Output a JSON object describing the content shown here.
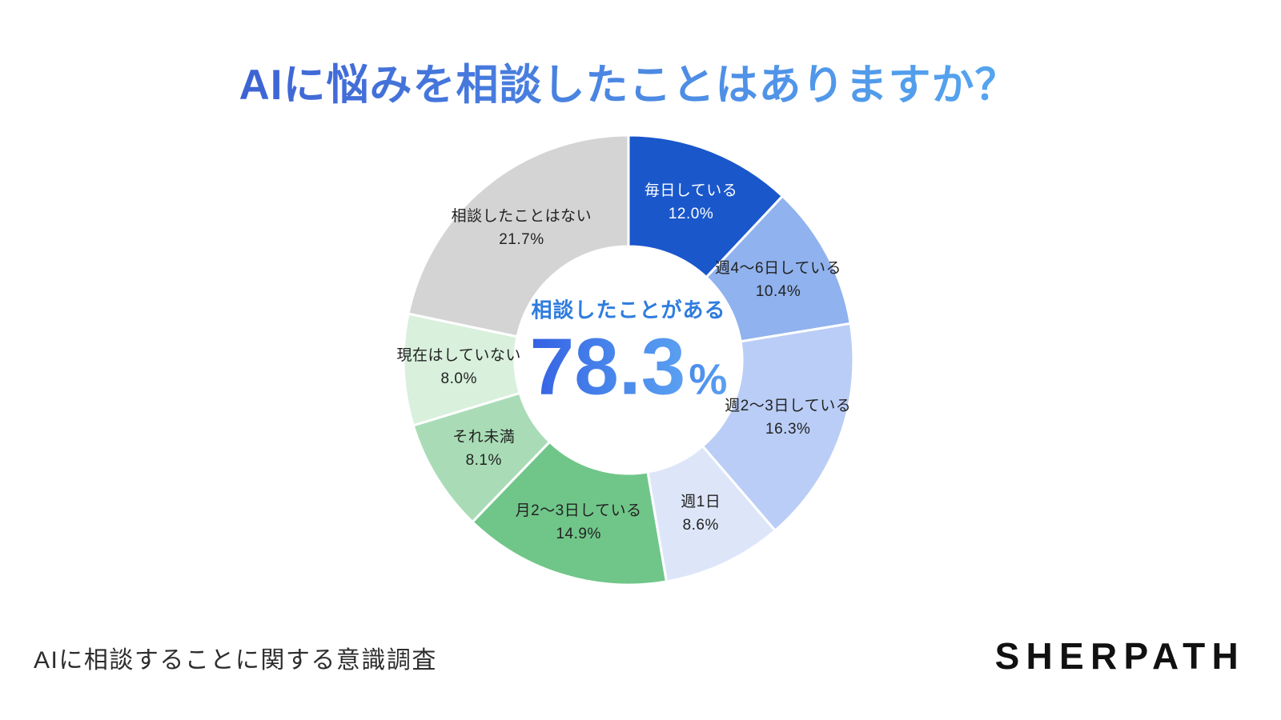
{
  "title": {
    "text": "AIに悩みを相談したことはありますか？",
    "gradient": [
      "#3E63D4",
      "#55A6EF"
    ]
  },
  "chart_data": {
    "type": "pie",
    "variant": "donut",
    "title": "AIに悩みを相談したことはありますか？",
    "start_angle_deg": 0,
    "direction": "clockwise",
    "segments": [
      {
        "label": "毎日している",
        "value": 12.0,
        "percent": "12.0%",
        "color": "#1A57CB",
        "text_color": "#FFFFFF"
      },
      {
        "label": "週4〜6日している",
        "value": 10.4,
        "percent": "10.4%",
        "color": "#90B2EE",
        "text_color": "#222222"
      },
      {
        "label": "週2〜3日している",
        "value": 16.3,
        "percent": "16.3%",
        "color": "#BACDF6",
        "text_color": "#222222"
      },
      {
        "label": "週1日",
        "value": 8.6,
        "percent": "8.6%",
        "color": "#DDE6F9",
        "text_color": "#222222"
      },
      {
        "label": "月2〜3日している",
        "value": 14.9,
        "percent": "14.9%",
        "color": "#70C689",
        "text_color": "#222222"
      },
      {
        "label": "それ未満",
        "value": 8.1,
        "percent": "8.1%",
        "color": "#A9DCB6",
        "text_color": "#222222"
      },
      {
        "label": "現在はしていない",
        "value": 8.0,
        "percent": "8.0%",
        "color": "#D8F0DC",
        "text_color": "#222222"
      },
      {
        "label": "相談したことはない",
        "value": 21.7,
        "percent": "21.7%",
        "color": "#D4D4D4",
        "text_color": "#222222"
      }
    ],
    "center": {
      "label": "相談したことがある",
      "value": "78.3",
      "unit": "%"
    },
    "colors": {
      "center_label": "#2F7CDE",
      "value_gradient": [
        "#3560E4",
        "#5BA1F1"
      ],
      "separator": "#FFFFFF"
    }
  },
  "footer": {
    "caption": "AIに相談することに関する意識調査",
    "brand": "SHERPATH"
  }
}
